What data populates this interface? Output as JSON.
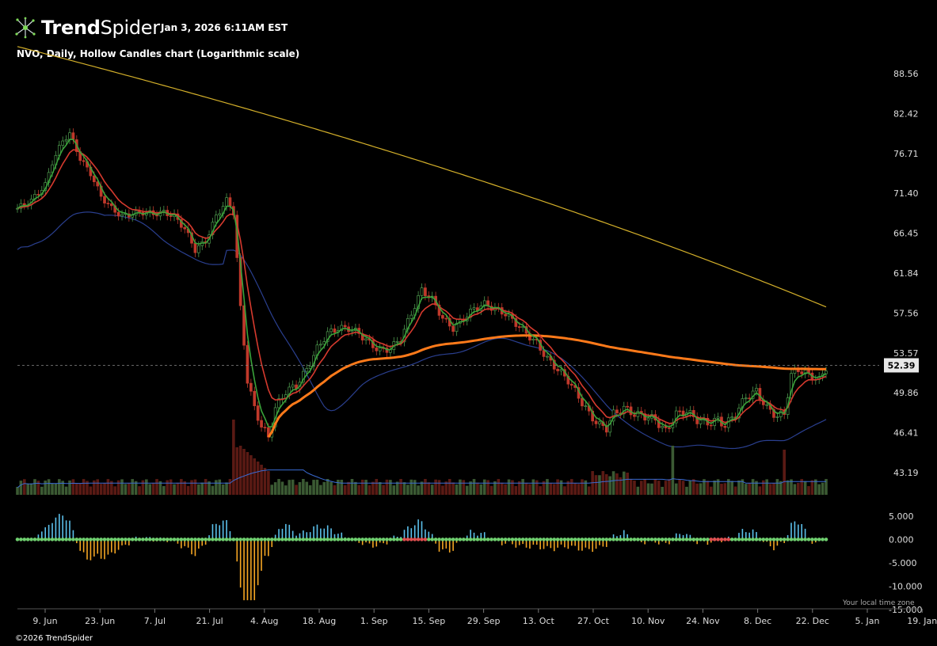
{
  "header": {
    "brand_bold": "Trend",
    "brand_light": "Spider",
    "timestamp": "Jan 3, 2026 6:11AM EST",
    "subtitle": "NVO, Daily, Hollow Candles chart (Logarithmic scale)"
  },
  "footer": {
    "copyright": "©2026 TrendSpider",
    "timezone_note": "Your local time zone"
  },
  "colors": {
    "background": "#000000",
    "up": "#4e9a4e",
    "down": "#c0392b",
    "sma200": "#d4b02a",
    "sma50": "#2a3f8f",
    "avwap": "#ff7a1a",
    "ema_fast": "#3aa33a",
    "ema_slow": "#d63a2e",
    "osc_pos": "#5bc0eb",
    "osc_neg": "#f5a623"
  },
  "chart_data": [
    {
      "type": "candlestick",
      "symbol": "NVO",
      "interval": "Daily",
      "scale": "log",
      "x_labels": [
        "9. Jun",
        "23. Jun",
        "7. Jul",
        "21. Jul",
        "4. Aug",
        "18. Aug",
        "1. Sep",
        "15. Sep",
        "29. Sep",
        "13. Oct",
        "27. Oct",
        "10. Nov",
        "24. Nov",
        "8. Dec",
        "22. Dec",
        "5. Jan",
        "19. Jan"
      ],
      "y_ticks": [
        "88.56",
        "82.42",
        "76.71",
        "71.40",
        "66.45",
        "61.84",
        "57.56",
        "53.57",
        "49.86",
        "46.41",
        "43.19"
      ],
      "last_price": "52.39",
      "ylim": [
        41.5,
        93.5
      ],
      "close_path": [
        [
          0,
          69.5
        ],
        [
          4,
          70.5
        ],
        [
          8,
          72.5
        ],
        [
          10,
          75.5
        ],
        [
          13,
          78.5
        ],
        [
          15,
          79.5
        ],
        [
          18,
          76.0
        ],
        [
          21,
          74.0
        ],
        [
          24,
          71.0
        ],
        [
          27,
          69.5
        ],
        [
          30,
          68.5
        ],
        [
          33,
          68.8
        ],
        [
          36,
          69.0
        ],
        [
          39,
          68.8
        ],
        [
          42,
          69.0
        ],
        [
          45,
          68.5
        ],
        [
          48,
          67.0
        ],
        [
          51,
          64.5
        ],
        [
          54,
          65.5
        ],
        [
          57,
          68.5
        ],
        [
          60,
          70.5
        ],
        [
          62,
          69.0
        ],
        [
          64,
          58.0
        ],
        [
          66,
          51.0
        ],
        [
          68,
          48.5
        ],
        [
          70,
          47.0
        ],
        [
          72,
          46.0
        ],
        [
          74,
          48.5
        ],
        [
          77,
          50.0
        ],
        [
          80,
          50.5
        ],
        [
          83,
          52.0
        ],
        [
          86,
          54.0
        ],
        [
          89,
          55.5
        ],
        [
          92,
          56.0
        ],
        [
          95,
          56.0
        ],
        [
          98,
          55.5
        ],
        [
          101,
          54.5
        ],
        [
          104,
          53.8
        ],
        [
          107,
          54.0
        ],
        [
          110,
          55.0
        ],
        [
          113,
          57.5
        ],
        [
          116,
          60.0
        ],
        [
          119,
          59.0
        ],
        [
          122,
          57.0
        ],
        [
          125,
          56.0
        ],
        [
          128,
          57.0
        ],
        [
          131,
          58.0
        ],
        [
          134,
          58.5
        ],
        [
          137,
          58.0
        ],
        [
          140,
          57.5
        ],
        [
          143,
          56.5
        ],
        [
          146,
          55.5
        ],
        [
          149,
          54.5
        ],
        [
          152,
          53.0
        ],
        [
          155,
          52.0
        ],
        [
          158,
          51.0
        ],
        [
          161,
          49.5
        ],
        [
          164,
          48.0
        ],
        [
          167,
          47.0
        ],
        [
          169,
          46.8
        ],
        [
          171,
          48.0
        ],
        [
          174,
          48.5
        ],
        [
          177,
          48.0
        ],
        [
          180,
          47.8
        ],
        [
          183,
          47.5
        ],
        [
          186,
          46.5
        ],
        [
          189,
          48.0
        ],
        [
          192,
          48.2
        ],
        [
          195,
          47.5
        ],
        [
          198,
          47.2
        ],
        [
          201,
          47.5
        ],
        [
          203,
          47.0
        ],
        [
          206,
          48.0
        ],
        [
          209,
          49.5
        ],
        [
          212,
          50.0
        ],
        [
          215,
          48.5
        ],
        [
          218,
          47.8
        ],
        [
          220,
          48.0
        ],
        [
          222,
          51.5
        ],
        [
          224,
          52.0
        ],
        [
          227,
          51.5
        ],
        [
          230,
          51.0
        ],
        [
          232,
          52.2
        ]
      ]
    },
    {
      "type": "bar",
      "name": "volume",
      "ylim": [
        0,
        100
      ]
    },
    {
      "type": "bar",
      "name": "oscillator",
      "y_ticks": [
        "5.000",
        "0.000",
        "-5.000",
        "-10.000",
        "-15.000"
      ],
      "ylim": [
        -15,
        7
      ]
    }
  ]
}
